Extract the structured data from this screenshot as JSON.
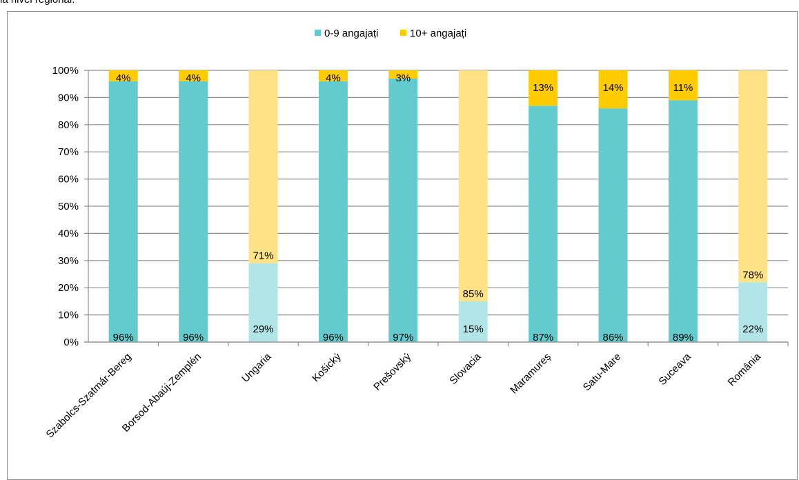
{
  "top_text": "la nivel regional.",
  "chart_data": {
    "type": "bar",
    "stacked": true,
    "percent_stacked": true,
    "categories": [
      "Szabolcs-Szatmár-Bereg",
      "Borsod-Abaúj-Zemplén",
      "Ungaria",
      "Košický",
      "Prešovský",
      "Slovacia",
      "Maramureș",
      "Satu-Mare",
      "Suceava",
      "România"
    ],
    "series": [
      {
        "name": "0-9 angajați",
        "values": [
          96,
          96,
          29,
          96,
          97,
          15,
          87,
          86,
          89,
          22
        ],
        "labels": [
          "96%",
          "96%",
          "29%",
          "96%",
          "97%",
          "15%",
          "87%",
          "86%",
          "89%",
          "22%"
        ]
      },
      {
        "name": "10+ angajați",
        "values": [
          4,
          4,
          71,
          4,
          3,
          85,
          13,
          14,
          11,
          78
        ],
        "labels": [
          "4%",
          "4%",
          "71%",
          "4%",
          "3%",
          "85%",
          "13%",
          "14%",
          "11%",
          "78%"
        ]
      }
    ],
    "highlight_aggregates": [
      2,
      5,
      9
    ],
    "y_ticks": [
      "0%",
      "10%",
      "20%",
      "30%",
      "40%",
      "50%",
      "60%",
      "70%",
      "80%",
      "90%",
      "100%"
    ],
    "ylim": [
      0,
      100
    ],
    "grid": true,
    "legend_position": "top",
    "colors": {
      "series0": "#63CBCE",
      "series0_light": "#B2E5E7",
      "series1": "#FFCC00",
      "series1_light": "#FFE285",
      "grid": "#8c8c8c",
      "axis": "#8c8c8c"
    }
  }
}
